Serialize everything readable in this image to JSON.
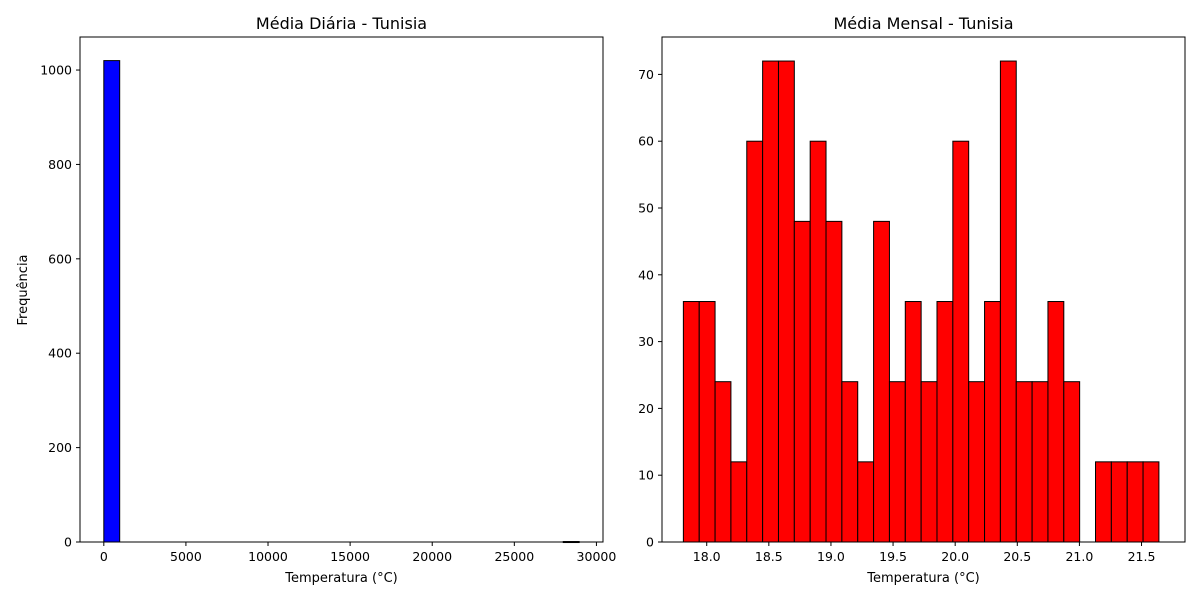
{
  "chart_data": [
    {
      "type": "bar",
      "title": "Média Diária - Tunisia",
      "xlabel": "Temperatura (°C)",
      "ylabel": "Frequência",
      "xlim": [
        -1450,
        30400
      ],
      "ylim": [
        0,
        1070
      ],
      "xticks": [
        0,
        5000,
        10000,
        15000,
        20000,
        25000,
        30000
      ],
      "xtick_labels": [
        "0",
        "5000",
        "10000",
        "15000",
        "20000",
        "25000",
        "30000"
      ],
      "yticks": [
        0,
        200,
        400,
        600,
        800,
        1000
      ],
      "ytick_labels": [
        "0",
        "200",
        "400",
        "600",
        "800",
        "1000"
      ],
      "color": "#0000ff",
      "edgecolor": "#000000",
      "bins": [
        {
          "x0": 0,
          "x1": 967,
          "value": 1020
        },
        {
          "x0": 27980,
          "x1": 28947,
          "value": 1
        }
      ]
    },
    {
      "type": "bar",
      "title": "Média Mensal - Tunisia",
      "xlabel": "Temperatura (°C)",
      "ylabel": "",
      "xlim": [
        17.64,
        21.85
      ],
      "ylim": [
        0,
        75.6
      ],
      "xticks": [
        18.0,
        18.5,
        19.0,
        19.5,
        20.0,
        20.5,
        21.0,
        21.5
      ],
      "xtick_labels": [
        "18.0",
        "18.5",
        "19.0",
        "19.5",
        "20.0",
        "20.5",
        "21.0",
        "21.5"
      ],
      "yticks": [
        0,
        10,
        20,
        30,
        40,
        50,
        60,
        70
      ],
      "ytick_labels": [
        "0",
        "10",
        "20",
        "30",
        "40",
        "50",
        "60",
        "70"
      ],
      "color": "#ff0000",
      "edgecolor": "#000000",
      "bin_start": 17.812,
      "bin_width": 0.1276,
      "values": [
        36,
        36,
        24,
        12,
        60,
        72,
        72,
        48,
        60,
        48,
        24,
        12,
        48,
        24,
        36,
        24,
        36,
        60,
        24,
        36,
        72,
        24,
        24,
        36,
        24,
        0,
        12,
        12,
        12,
        12
      ]
    }
  ]
}
